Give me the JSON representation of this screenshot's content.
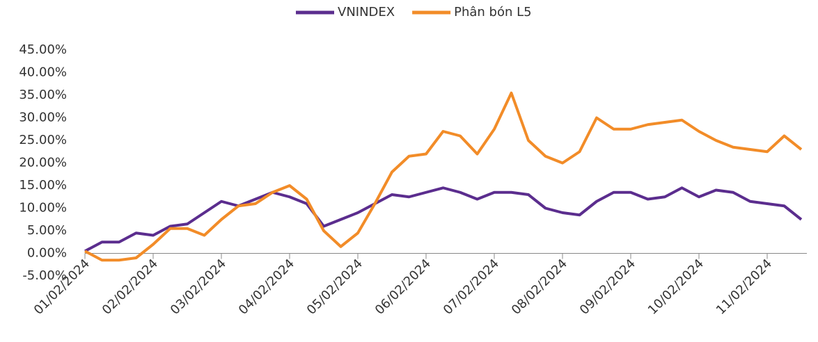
{
  "chart_data": {
    "type": "line",
    "categories": [
      "01/02/2024",
      null,
      null,
      null,
      "02/02/2024",
      null,
      null,
      null,
      "03/02/2024",
      null,
      null,
      null,
      "04/02/2024",
      null,
      null,
      null,
      "05/02/2024",
      null,
      null,
      null,
      "06/02/2024",
      null,
      null,
      null,
      "07/02/2024",
      null,
      null,
      null,
      "08/02/2024",
      null,
      null,
      null,
      "09/02/2024",
      null,
      null,
      null,
      "10/02/2024",
      null,
      null,
      null,
      "11/02/2024",
      null,
      null
    ],
    "series": [
      {
        "name": "VNINDEX",
        "color": "#5b2d8e",
        "values": [
          0.5,
          2.5,
          2.5,
          4.5,
          4,
          6,
          6.5,
          9,
          11.5,
          10.5,
          12,
          13.5,
          12.5,
          11,
          6,
          7.5,
          9,
          11,
          13,
          12.5,
          13.5,
          14.5,
          13.5,
          12,
          13.5,
          13.5,
          13,
          10,
          9,
          8.5,
          11.5,
          13.5,
          13.5,
          12,
          12.5,
          14.5,
          12.5,
          14,
          13.5,
          11.5,
          11,
          10.5,
          7.5
        ]
      },
      {
        "name": "Phân bón L5",
        "color": "#f28c28",
        "values": [
          0.5,
          -1.5,
          -1.5,
          -1,
          2,
          5.5,
          5.5,
          4,
          7.5,
          10.5,
          11,
          13.5,
          15,
          12,
          5,
          1.5,
          4.5,
          11,
          18,
          21.5,
          22,
          27,
          26,
          22,
          27.5,
          35.5,
          25,
          21.5,
          20,
          22.5,
          30,
          27.5,
          27.5,
          28.5,
          29,
          29.5,
          27,
          25,
          23.5,
          23,
          22.5,
          26,
          23
        ]
      }
    ],
    "ylim": [
      -5,
      45
    ],
    "yticks": [
      {
        "value": -5,
        "label": "-5.00%"
      },
      {
        "value": 0,
        "label": "0.00%"
      },
      {
        "value": 5,
        "label": "5.00%"
      },
      {
        "value": 10,
        "label": "10.00%"
      },
      {
        "value": 15,
        "label": "15.00%"
      },
      {
        "value": 20,
        "label": "20.00%"
      },
      {
        "value": 25,
        "label": "25.00%"
      },
      {
        "value": 30,
        "label": "30.00%"
      },
      {
        "value": 35,
        "label": "35.00%"
      },
      {
        "value": 40,
        "label": "40.00%"
      },
      {
        "value": 45,
        "label": "45.00%"
      }
    ],
    "legend": "top"
  }
}
